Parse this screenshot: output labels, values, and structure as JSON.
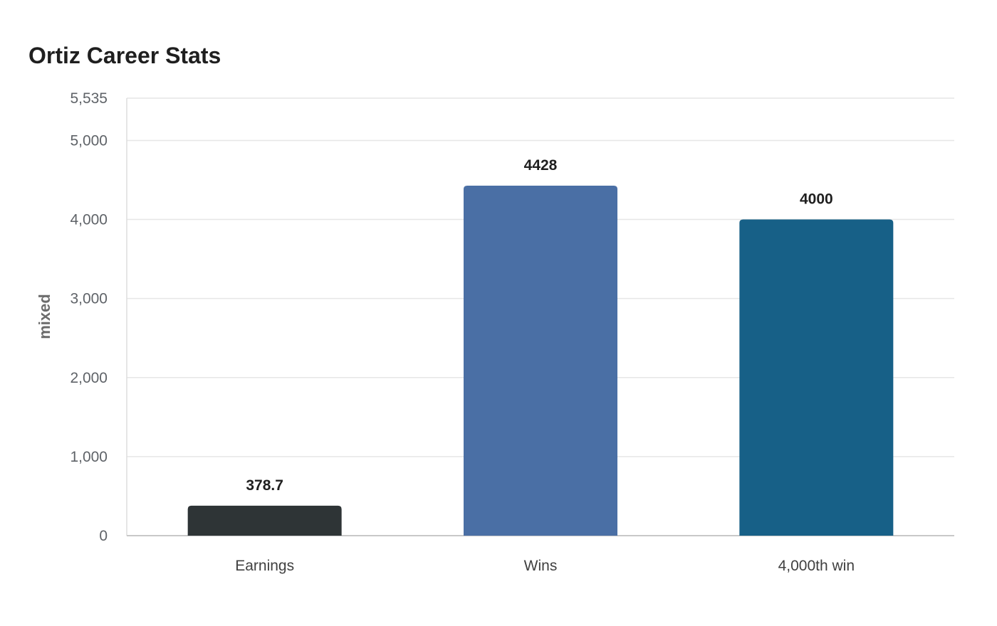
{
  "chart_data": {
    "type": "bar",
    "title": "Ortiz Career Stats",
    "xlabel": "",
    "ylabel": "mixed",
    "categories": [
      "Earnings",
      "Wins",
      "4,000th win"
    ],
    "values": [
      378.7,
      4428,
      4000
    ],
    "value_labels": [
      "378.7",
      "4428",
      "4000"
    ],
    "colors": [
      "#2e3436",
      "#4a6fa5",
      "#176087"
    ],
    "ylim": [
      0,
      5535
    ],
    "yticks": [
      0,
      1000,
      2000,
      3000,
      4000,
      5000,
      5535
    ],
    "ytick_labels": [
      "0",
      "1,000",
      "2,000",
      "3,000",
      "4,000",
      "5,000",
      "5,535"
    ],
    "grid": true,
    "legend": "none"
  }
}
